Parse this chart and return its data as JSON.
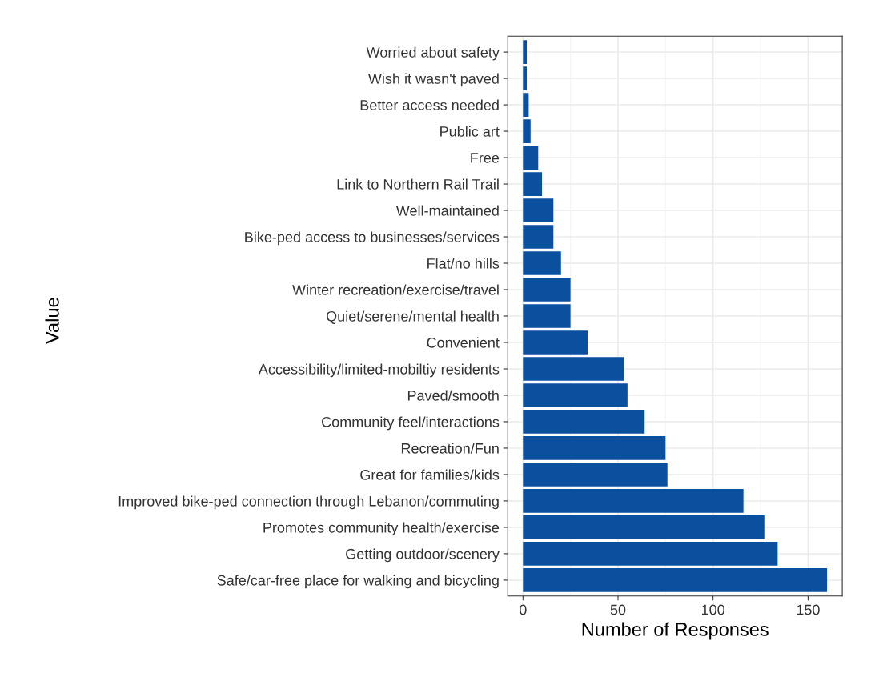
{
  "chart_data": {
    "type": "bar",
    "orientation": "horizontal",
    "xlabel": "Number of Responses",
    "ylabel": "Value",
    "categories": [
      "Worried about safety",
      "Wish it wasn't paved",
      "Better access needed",
      "Public art",
      "Free",
      "Link to Northern Rail Trail",
      "Well-maintained",
      "Bike-ped access to businesses/services",
      "Flat/no hills",
      "Winter recreation/exercise/travel",
      "Quiet/serene/mental health",
      "Convenient",
      "Accessibility/limited-mobiltiy residents",
      "Paved/smooth",
      "Community feel/interactions",
      "Recreation/Fun",
      "Great for families/kids",
      "Improved bike-ped connection through Lebanon/commuting",
      "Promotes community health/exercise",
      "Getting outdoor/scenery",
      "Safe/car-free place for walking and bicycling"
    ],
    "values": [
      2,
      2,
      3,
      4,
      8,
      10,
      16,
      16,
      20,
      25,
      25,
      34,
      53,
      55,
      64,
      75,
      76,
      116,
      127,
      134,
      160
    ],
    "color": "#0b4f9f",
    "xlim": [
      -8,
      168
    ],
    "xticks": [
      0,
      50,
      100,
      150
    ],
    "grid": true
  }
}
